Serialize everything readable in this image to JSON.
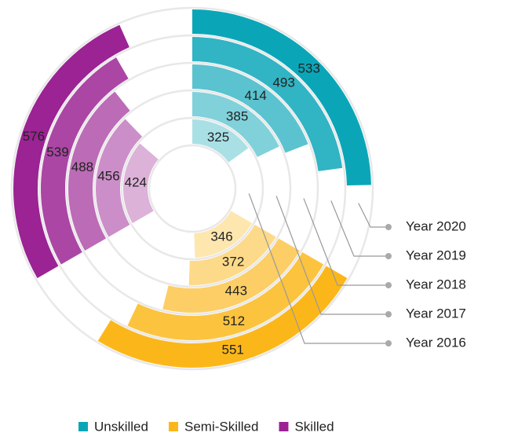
{
  "chart_data": {
    "type": "radial-bar",
    "rings": [
      "Year 2016",
      "Year 2017",
      "Year 2018",
      "Year 2019",
      "Year 2020"
    ],
    "series": [
      {
        "name": "Unskilled",
        "color": "#0aa6b8",
        "values": [
          325,
          385,
          414,
          493,
          533
        ]
      },
      {
        "name": "Semi-Skilled",
        "color": "#fbb71a",
        "values": [
          346,
          372,
          443,
          512,
          551
        ]
      },
      {
        "name": "Skilled",
        "color": "#9b2393",
        "values": [
          424,
          456,
          488,
          539,
          576
        ]
      }
    ],
    "legend": "bottom"
  }
}
